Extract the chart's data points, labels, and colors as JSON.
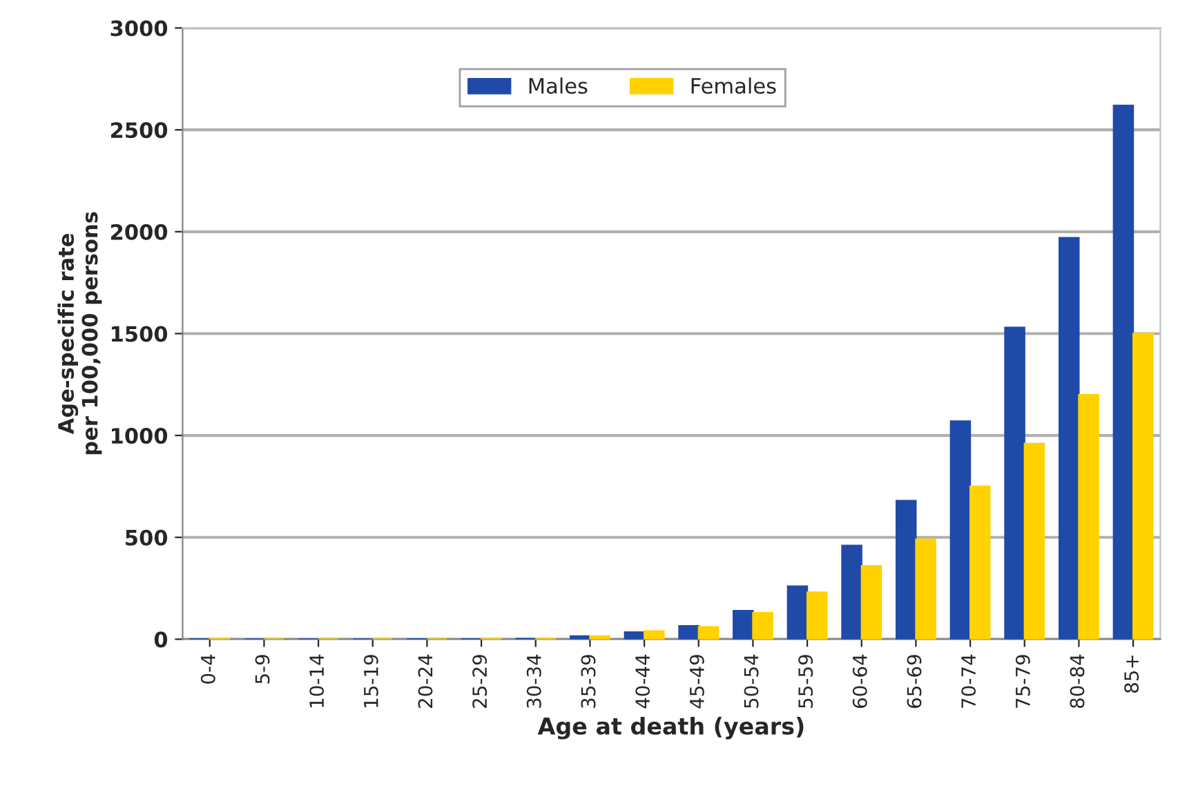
{
  "chart_data": {
    "type": "bar",
    "xlabel": "Age at death (years)",
    "ylabel": "Age-specific rate\nper 100,000 persons",
    "categories": [
      "0-4",
      "5-9",
      "10-14",
      "15-19",
      "20-24",
      "25-29",
      "30-34",
      "35-39",
      "40-44",
      "45-49",
      "50-54",
      "55-59",
      "60-64",
      "65-69",
      "70-74",
      "75-79",
      "80-84",
      "85+"
    ],
    "series": [
      {
        "name": "Males",
        "color": "#1f4aa8",
        "values": [
          1,
          0,
          0,
          0,
          1,
          1,
          3,
          15,
          35,
          65,
          140,
          260,
          460,
          680,
          1070,
          1530,
          1970,
          2620
        ]
      },
      {
        "name": "Females",
        "color": "#ffd200",
        "values": [
          1,
          0,
          0,
          0,
          0,
          1,
          2,
          15,
          40,
          60,
          130,
          230,
          360,
          490,
          750,
          960,
          1200,
          1500
        ]
      }
    ],
    "ylim": [
      0,
      3000
    ],
    "yticks": [
      0,
      500,
      1000,
      1500,
      2000,
      2500,
      3000
    ],
    "grid": "y",
    "legend": "top"
  }
}
